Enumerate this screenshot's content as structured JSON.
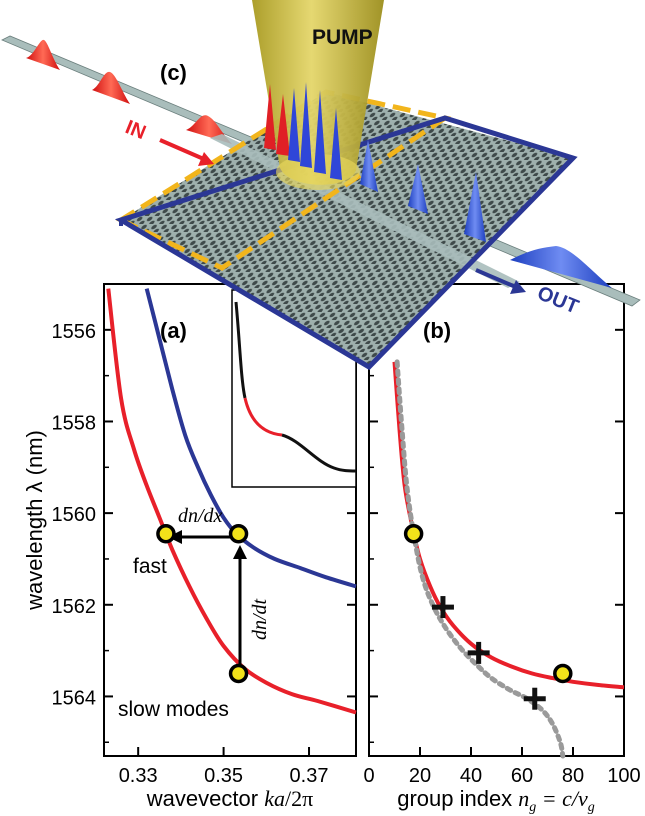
{
  "figure": {
    "panel_c": {
      "label": "(c)",
      "pump_label": "PUMP",
      "in_label": "IN",
      "out_label": "OUT"
    },
    "panel_a": {
      "label": "(a)",
      "ylabel": "wavelength λ (nm)",
      "xlabel_prefix": "wavevector ",
      "xlabel_italic": "ka",
      "xlabel_suffix": "/2π",
      "annotation_fast": "fast",
      "annotation_slow": "slow modes",
      "dn_dx": "dn/dx",
      "dn_dt": "dn/dt"
    },
    "panel_b": {
      "label": "(b)",
      "xlabel_prefix": "group index ",
      "xlabel_formula": "n",
      "xlabel_sub": "g",
      "xlabel_eq": " = c/v",
      "xlabel_sub2": "g"
    },
    "colors": {
      "red_curve": "#e8202a",
      "blue_curve": "#2b3795",
      "dot_fill": "#f2e21a",
      "pump_beam": "#c9b93c",
      "slab_border": "#2b3795",
      "dashed_box": "#f2b51c",
      "dotted_gray": "#9a9a9a"
    }
  },
  "chart_data": [
    {
      "type": "line",
      "panel": "(a)",
      "xlabel": "wavevector ka/2π",
      "ylabel": "wavelength λ (nm)",
      "xlim": [
        0.322,
        0.381
      ],
      "ylim": [
        1565.3,
        1555
      ],
      "xticks": [
        "0.33",
        "0.35",
        "0.37"
      ],
      "yticks": [
        "1556",
        "1558",
        "1560",
        "1562",
        "1564"
      ],
      "series": [
        {
          "color": "#e8202a",
          "x": [
            0.323,
            0.326,
            0.329,
            0.332,
            0.335,
            0.338,
            0.342,
            0.346,
            0.35,
            0.355,
            0.36,
            0.366,
            0.372,
            0.381
          ],
          "y": [
            1555.1,
            1557.5,
            1558.6,
            1559.4,
            1560.1,
            1560.8,
            1561.6,
            1562.3,
            1562.9,
            1563.4,
            1563.7,
            1563.95,
            1564.1,
            1564.35
          ]
        },
        {
          "color": "#2b3795",
          "x": [
            0.332,
            0.335,
            0.338,
            0.341,
            0.344,
            0.347,
            0.35,
            0.353,
            0.357,
            0.362,
            0.368,
            0.374,
            0.381
          ],
          "y": [
            1555.1,
            1556.2,
            1557.3,
            1558.3,
            1559.0,
            1559.6,
            1560.1,
            1560.45,
            1560.75,
            1561.0,
            1561.2,
            1561.4,
            1561.6
          ]
        }
      ],
      "points": [
        {
          "x": 0.3365,
          "y": 1560.45
        },
        {
          "x": 0.3535,
          "y": 1560.45
        },
        {
          "x": 0.3535,
          "y": 1563.5
        }
      ]
    },
    {
      "type": "line",
      "panel": "(b)",
      "xlabel": "group index n_g = c/v_g",
      "xlim": [
        0,
        100
      ],
      "ylim": [
        1565.3,
        1555
      ],
      "xticks": [
        "0",
        "20",
        "40",
        "60",
        "80",
        "100"
      ],
      "series": [
        {
          "color": "#e8202a",
          "x": [
            10,
            12,
            14,
            17,
            20,
            24,
            28,
            33,
            40,
            48,
            56,
            64,
            72,
            80,
            90,
            100
          ],
          "y": [
            1556.7,
            1558.2,
            1559.4,
            1560.3,
            1561.0,
            1561.6,
            1562.05,
            1562.45,
            1562.85,
            1563.15,
            1563.35,
            1563.5,
            1563.6,
            1563.68,
            1563.75,
            1563.8
          ]
        },
        {
          "color": "#9a9a9a",
          "dashed": true,
          "x": [
            11,
            13,
            15,
            18,
            21,
            25,
            30,
            36,
            42,
            48,
            55,
            62,
            68,
            72,
            75,
            76
          ],
          "y": [
            1556.7,
            1558.2,
            1559.5,
            1560.6,
            1561.4,
            1562.0,
            1562.5,
            1562.95,
            1563.3,
            1563.6,
            1563.85,
            1564.05,
            1564.3,
            1564.6,
            1565.0,
            1565.3
          ]
        }
      ],
      "points": [
        {
          "x": 17.5,
          "y": 1560.45
        },
        {
          "x": 76,
          "y": 1563.5
        }
      ],
      "crosses": [
        {
          "x": 29,
          "y": 1562.05
        },
        {
          "x": 43,
          "y": 1563.05
        },
        {
          "x": 65,
          "y": 1564.05
        }
      ]
    }
  ]
}
